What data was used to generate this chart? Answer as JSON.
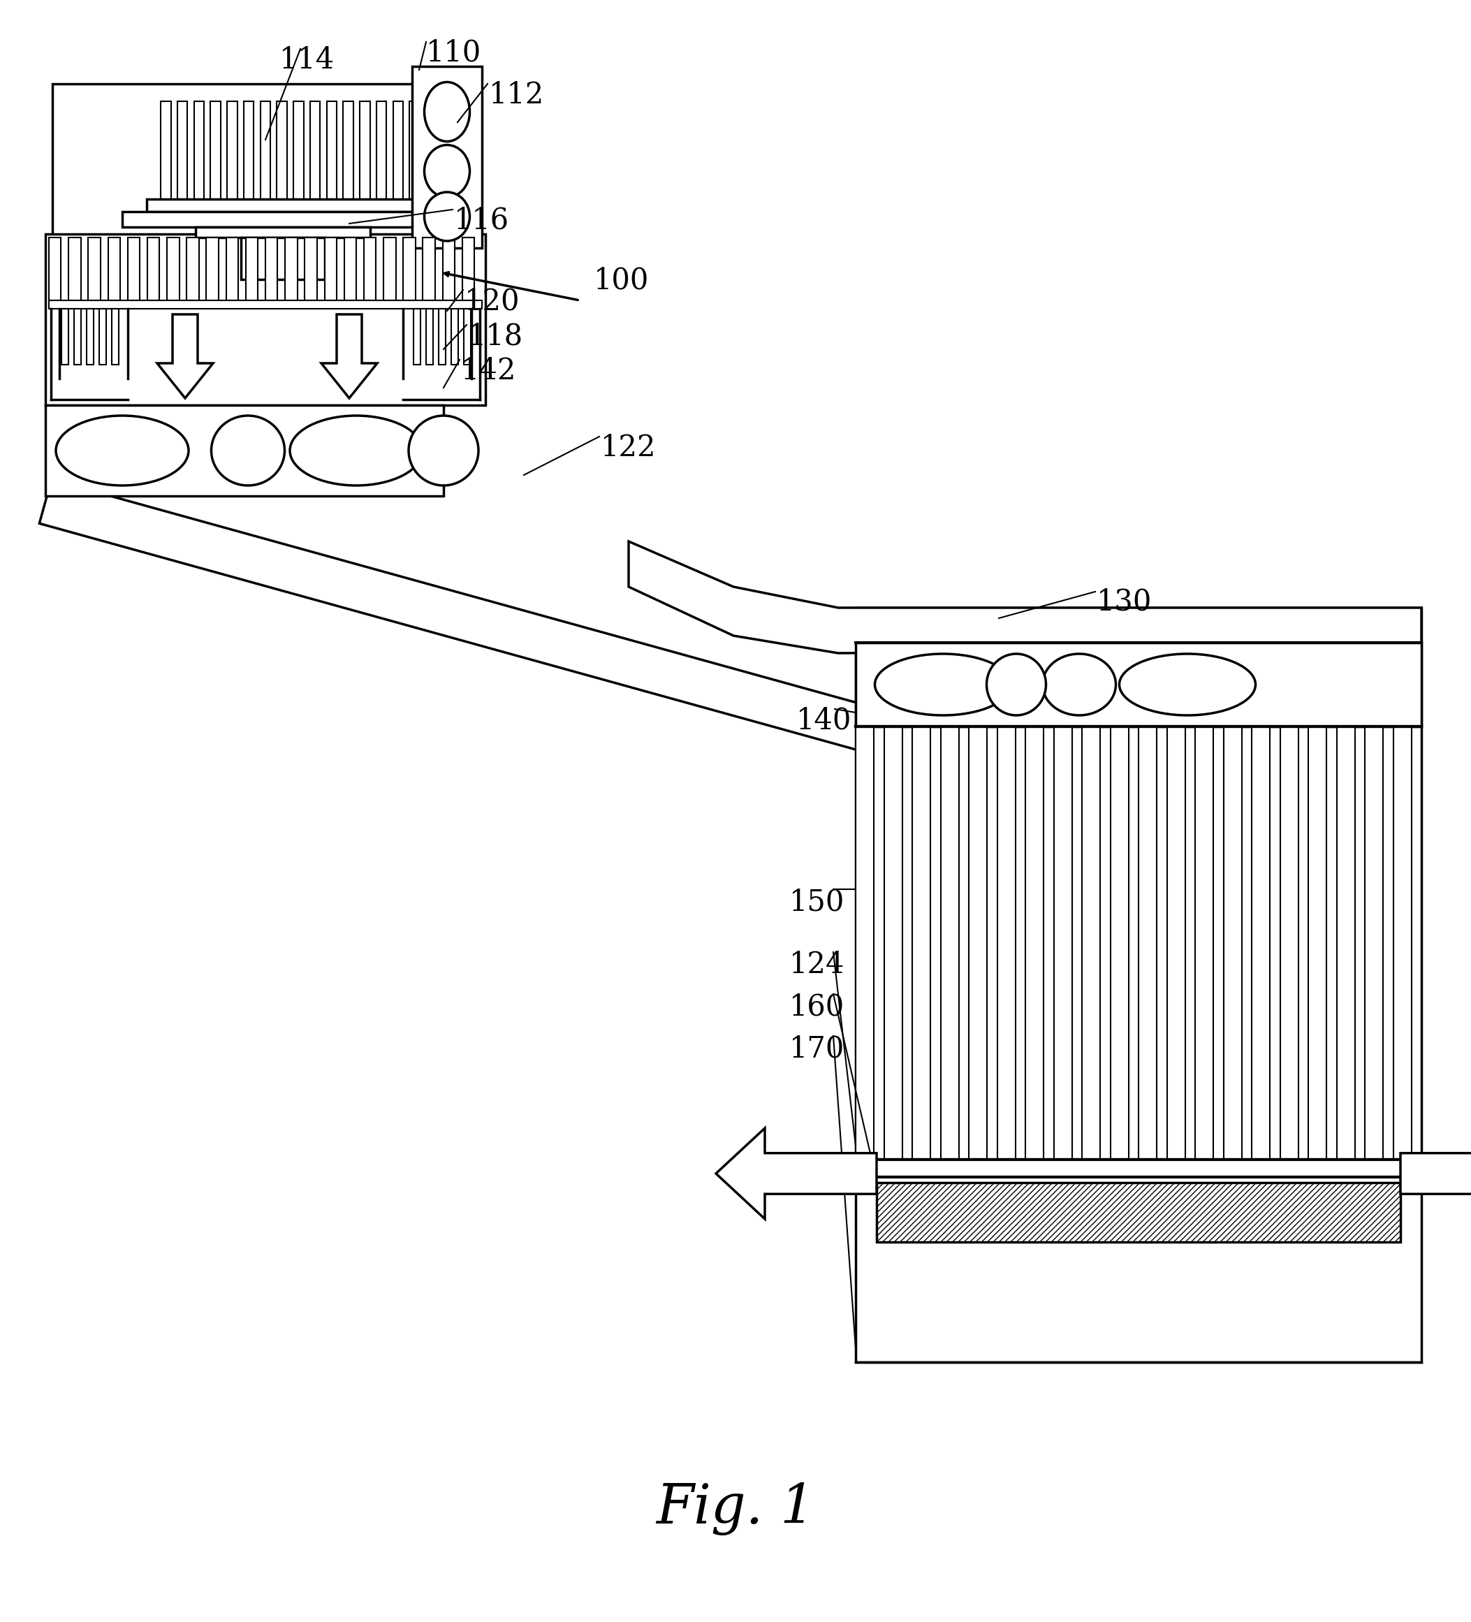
{
  "bg_color": "#ffffff",
  "lc": "#000000",
  "lw": 2.5,
  "lw_thin": 1.5,
  "fig_width": 21.06,
  "fig_height": 23.22,
  "title": "Fig. 1"
}
